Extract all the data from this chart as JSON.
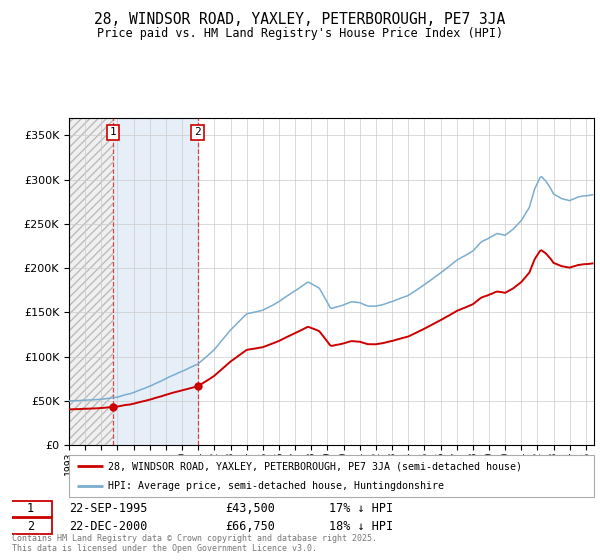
{
  "title_line1": "28, WINDSOR ROAD, YAXLEY, PETERBOROUGH, PE7 3JA",
  "title_line2": "Price paid vs. HM Land Registry's House Price Index (HPI)",
  "background_color": "#ffffff",
  "hatch_color": "#cccccc",
  "grid_color": "#cccccc",
  "sale1_date": "22-SEP-1995",
  "sale1_price": 43500,
  "sale1_year": 1995.708,
  "sale1_pct": "17% ↓ HPI",
  "sale2_date": "22-DEC-2000",
  "sale2_price": 66750,
  "sale2_year": 2000.958,
  "sale2_pct": "18% ↓ HPI",
  "legend_label1": "28, WINDSOR ROAD, YAXLEY, PETERBOROUGH, PE7 3JA (semi-detached house)",
  "legend_label2": "HPI: Average price, semi-detached house, Huntingdonshire",
  "footnote1": "Contains HM Land Registry data © Crown copyright and database right 2025.",
  "footnote2": "This data is licensed under the Open Government Licence v3.0.",
  "red_color": "#cc0000",
  "blue_color": "#7aadcf",
  "ylim_max": 370000,
  "xlim_min": 1993.0,
  "xlim_max": 2025.5
}
